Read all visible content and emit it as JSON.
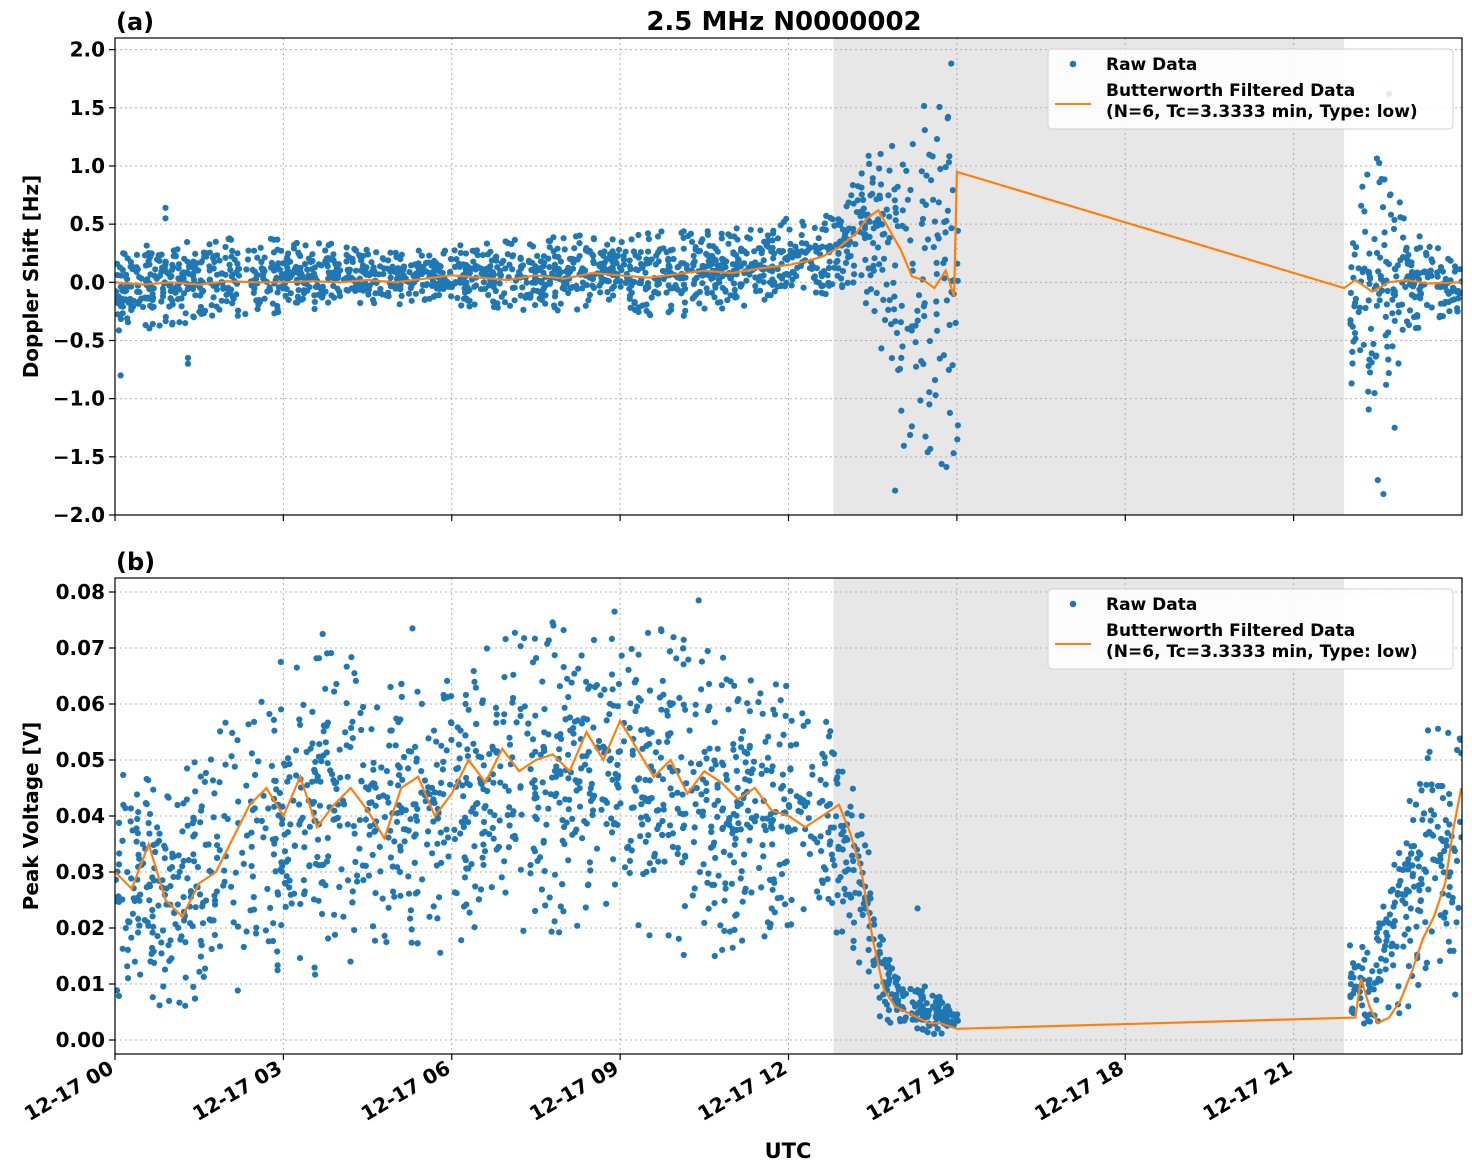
{
  "figure": {
    "title": "2.5 MHz N0000002",
    "xlabel": "UTC",
    "x_ticks": [
      "12-17 00",
      "12-17 03",
      "12-17 06",
      "12-17 09",
      "12-17 12",
      "12-17 15",
      "12-17 18",
      "12-17 21"
    ],
    "colors": {
      "raw": "#1f77b4",
      "filtered": "#ff7f0e",
      "shade": "#e7e7e7",
      "grid": "#b0b0b0"
    }
  },
  "chart_data": [
    {
      "type": "scatter",
      "panel_label": "(a)",
      "ylabel": "Doppler Shift [Hz]",
      "xlim_hours": [
        0,
        24
      ],
      "ylim": [
        -2.0,
        2.1
      ],
      "y_ticks": [
        "2.0",
        "1.5",
        "1.0",
        "0.5",
        "0.0",
        "−0.5",
        "−1.0",
        "−1.5",
        "−2.0"
      ],
      "y_tick_values": [
        2.0,
        1.5,
        1.0,
        0.5,
        0.0,
        -0.5,
        -1.0,
        -1.5,
        -2.0
      ],
      "grid": true,
      "legend_position": "top-right",
      "shaded_span_hours": [
        12.8,
        21.9
      ],
      "series": [
        {
          "name": "Raw Data",
          "kind": "scatter",
          "spread_x": [
            0,
            2,
            5,
            8,
            10,
            12,
            12.8,
            13.3,
            14.0,
            14.5,
            15.0,
            22.2,
            22.6,
            23.1,
            23.99
          ],
          "spread_low": [
            -0.45,
            -0.3,
            -0.2,
            -0.25,
            -0.3,
            -0.15,
            -0.1,
            -0.05,
            -1.4,
            -1.6,
            -1.7,
            -1.0,
            -1.5,
            -0.5,
            -0.3
          ],
          "spread_high": [
            0.35,
            0.4,
            0.3,
            0.4,
            0.45,
            0.55,
            0.6,
            1.1,
            1.3,
            1.6,
            1.85,
            0.8,
            1.4,
            0.5,
            0.2
          ],
          "outliers": [
            [
              0.9,
              0.64
            ],
            [
              0.9,
              0.55
            ],
            [
              1.3,
              -0.7
            ],
            [
              1.3,
              -0.65
            ],
            [
              0.1,
              -0.8
            ],
            [
              13.9,
              -1.79
            ],
            [
              14.9,
              1.88
            ],
            [
              22.7,
              1.62
            ],
            [
              22.6,
              -1.82
            ],
            [
              22.5,
              -1.7
            ],
            [
              22.8,
              -1.25
            ],
            [
              23.6,
              -0.3
            ]
          ]
        },
        {
          "name": "Butterworth Filtered Data\n(N=6, Tc=3.3333 min, Type: low)",
          "kind": "line",
          "x": [
            0,
            0.5,
            1,
            1.5,
            2,
            2.5,
            3,
            3.5,
            4,
            4.5,
            5,
            5.5,
            6,
            6.5,
            7,
            7.5,
            8,
            8.5,
            9,
            9.5,
            10,
            10.5,
            11,
            11.5,
            12,
            12.3,
            12.6,
            12.9,
            13.2,
            13.4,
            13.6,
            13.8,
            14.0,
            14.2,
            14.4,
            14.6,
            14.8,
            14.95,
            15.0,
            21.9,
            22.1,
            22.4,
            22.7,
            23.0,
            23.4,
            23.99
          ],
          "y": [
            0.0,
            -0.02,
            0.0,
            -0.02,
            0.01,
            0.0,
            0.0,
            0.01,
            0.0,
            0.02,
            0.0,
            0.03,
            0.06,
            0.04,
            0.02,
            0.06,
            0.03,
            0.08,
            0.06,
            0.04,
            0.07,
            0.1,
            0.08,
            0.12,
            0.15,
            0.18,
            0.22,
            0.3,
            0.42,
            0.55,
            0.62,
            0.45,
            0.28,
            0.05,
            0.02,
            -0.05,
            0.1,
            -0.12,
            0.95,
            -0.05,
            0.02,
            -0.08,
            0.0,
            0.02,
            -0.01,
            0.0
          ]
        }
      ]
    },
    {
      "type": "scatter",
      "panel_label": "(b)",
      "ylabel": "Peak Voltage [V]",
      "xlim_hours": [
        0,
        24
      ],
      "ylim": [
        -0.0025,
        0.0825
      ],
      "y_ticks": [
        "0.08",
        "0.07",
        "0.06",
        "0.05",
        "0.04",
        "0.03",
        "0.02",
        "0.01",
        "0.00"
      ],
      "y_tick_values": [
        0.08,
        0.07,
        0.06,
        0.05,
        0.04,
        0.03,
        0.02,
        0.01,
        0.0
      ],
      "grid": true,
      "legend_position": "top-right",
      "shaded_span_hours": [
        12.8,
        21.9
      ],
      "series": [
        {
          "name": "Raw Data",
          "kind": "scatter",
          "spread_x": [
            0,
            1,
            2,
            3,
            4,
            5,
            6,
            7,
            8,
            9,
            10,
            11,
            12,
            12.8,
            13.3,
            13.6,
            14.0,
            14.5,
            15.0,
            22.1,
            22.4,
            22.8,
            23.3,
            23.99
          ],
          "spread_low": [
            0.006,
            0.005,
            0.008,
            0.01,
            0.012,
            0.015,
            0.015,
            0.02,
            0.018,
            0.02,
            0.015,
            0.015,
            0.017,
            0.02,
            0.012,
            0.004,
            0.001,
            0.001,
            0.001,
            0.002,
            0.002,
            0.004,
            0.006,
            0.008
          ],
          "spread_high": [
            0.055,
            0.045,
            0.065,
            0.068,
            0.07,
            0.068,
            0.07,
            0.073,
            0.075,
            0.075,
            0.073,
            0.072,
            0.063,
            0.057,
            0.045,
            0.02,
            0.012,
            0.01,
            0.005,
            0.018,
            0.015,
            0.04,
            0.055,
            0.065
          ],
          "outliers": [
            [
              10.4,
              0.0785
            ],
            [
              8.9,
              0.0765
            ],
            [
              3.7,
              0.0725
            ],
            [
              5.3,
              0.0735
            ],
            [
              14.3,
              0.0235
            ]
          ]
        },
        {
          "name": "Butterworth Filtered Data\n(N=6, Tc=3.3333 min, Type: low)",
          "kind": "line",
          "x": [
            0,
            0.3,
            0.6,
            0.9,
            1.2,
            1.5,
            1.8,
            2.1,
            2.4,
            2.7,
            3.0,
            3.3,
            3.6,
            3.9,
            4.2,
            4.5,
            4.8,
            5.1,
            5.4,
            5.7,
            6.0,
            6.3,
            6.6,
            6.9,
            7.2,
            7.5,
            7.8,
            8.1,
            8.4,
            8.7,
            9.0,
            9.3,
            9.6,
            9.9,
            10.2,
            10.5,
            10.8,
            11.1,
            11.4,
            11.7,
            12.0,
            12.3,
            12.6,
            12.9,
            13.1,
            13.3,
            13.5,
            13.7,
            13.9,
            14.1,
            14.3,
            14.5,
            14.7,
            15.0,
            22.1,
            22.2,
            22.35,
            22.5,
            22.7,
            22.9,
            23.1,
            23.3,
            23.5,
            23.7,
            23.85,
            23.99
          ],
          "y": [
            0.03,
            0.027,
            0.035,
            0.025,
            0.022,
            0.028,
            0.03,
            0.036,
            0.042,
            0.045,
            0.04,
            0.047,
            0.038,
            0.042,
            0.045,
            0.041,
            0.036,
            0.045,
            0.047,
            0.04,
            0.044,
            0.05,
            0.046,
            0.052,
            0.048,
            0.05,
            0.051,
            0.048,
            0.055,
            0.05,
            0.057,
            0.052,
            0.047,
            0.05,
            0.044,
            0.048,
            0.046,
            0.043,
            0.045,
            0.041,
            0.04,
            0.038,
            0.04,
            0.042,
            0.037,
            0.03,
            0.018,
            0.009,
            0.006,
            0.005,
            0.004,
            0.003,
            0.003,
            0.002,
            0.004,
            0.011,
            0.006,
            0.003,
            0.004,
            0.007,
            0.012,
            0.018,
            0.022,
            0.028,
            0.038,
            0.045
          ]
        }
      ]
    }
  ]
}
